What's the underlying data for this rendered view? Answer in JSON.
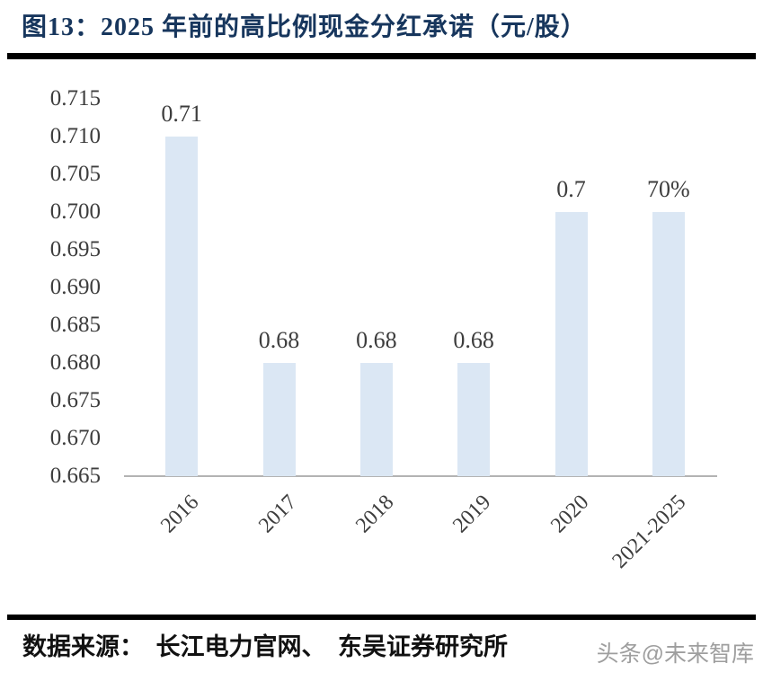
{
  "header": {
    "title": "图13：2025 年前的高比例现金分红承诺（元/股）"
  },
  "footer": {
    "source": "数据来源：　长江电力官网、　东吴证券研究所",
    "watermark": "头条@未来智库"
  },
  "colors": {
    "title_text": "#17365d",
    "bar_fill": "#dbe7f4",
    "axis_line": "#b3b3b3",
    "tick_text": "#3d3d3d",
    "divider": "#000000",
    "watermark_text": "#9e9e9e"
  },
  "chart_data": {
    "type": "bar",
    "title": "图13：2025 年前的高比例现金分红承诺（元/股）",
    "categories": [
      "2016",
      "2017",
      "2018",
      "2019",
      "2020",
      "2021-2025"
    ],
    "values": [
      0.71,
      0.68,
      0.68,
      0.68,
      0.7,
      0.7
    ],
    "bar_value_labels": [
      "0.71",
      "0.68",
      "0.68",
      "0.68",
      "0.7",
      "70%"
    ],
    "xlabel": "",
    "ylabel": "",
    "ylim": [
      0.665,
      0.715
    ],
    "ytick_step": 0.005,
    "yticks": [
      "0.715",
      "0.710",
      "0.705",
      "0.700",
      "0.695",
      "0.690",
      "0.685",
      "0.680",
      "0.675",
      "0.670",
      "0.665"
    ],
    "grid": false,
    "legend": null,
    "x_tick_rotation_deg": 45,
    "bar_color": "#dbe7f4"
  }
}
